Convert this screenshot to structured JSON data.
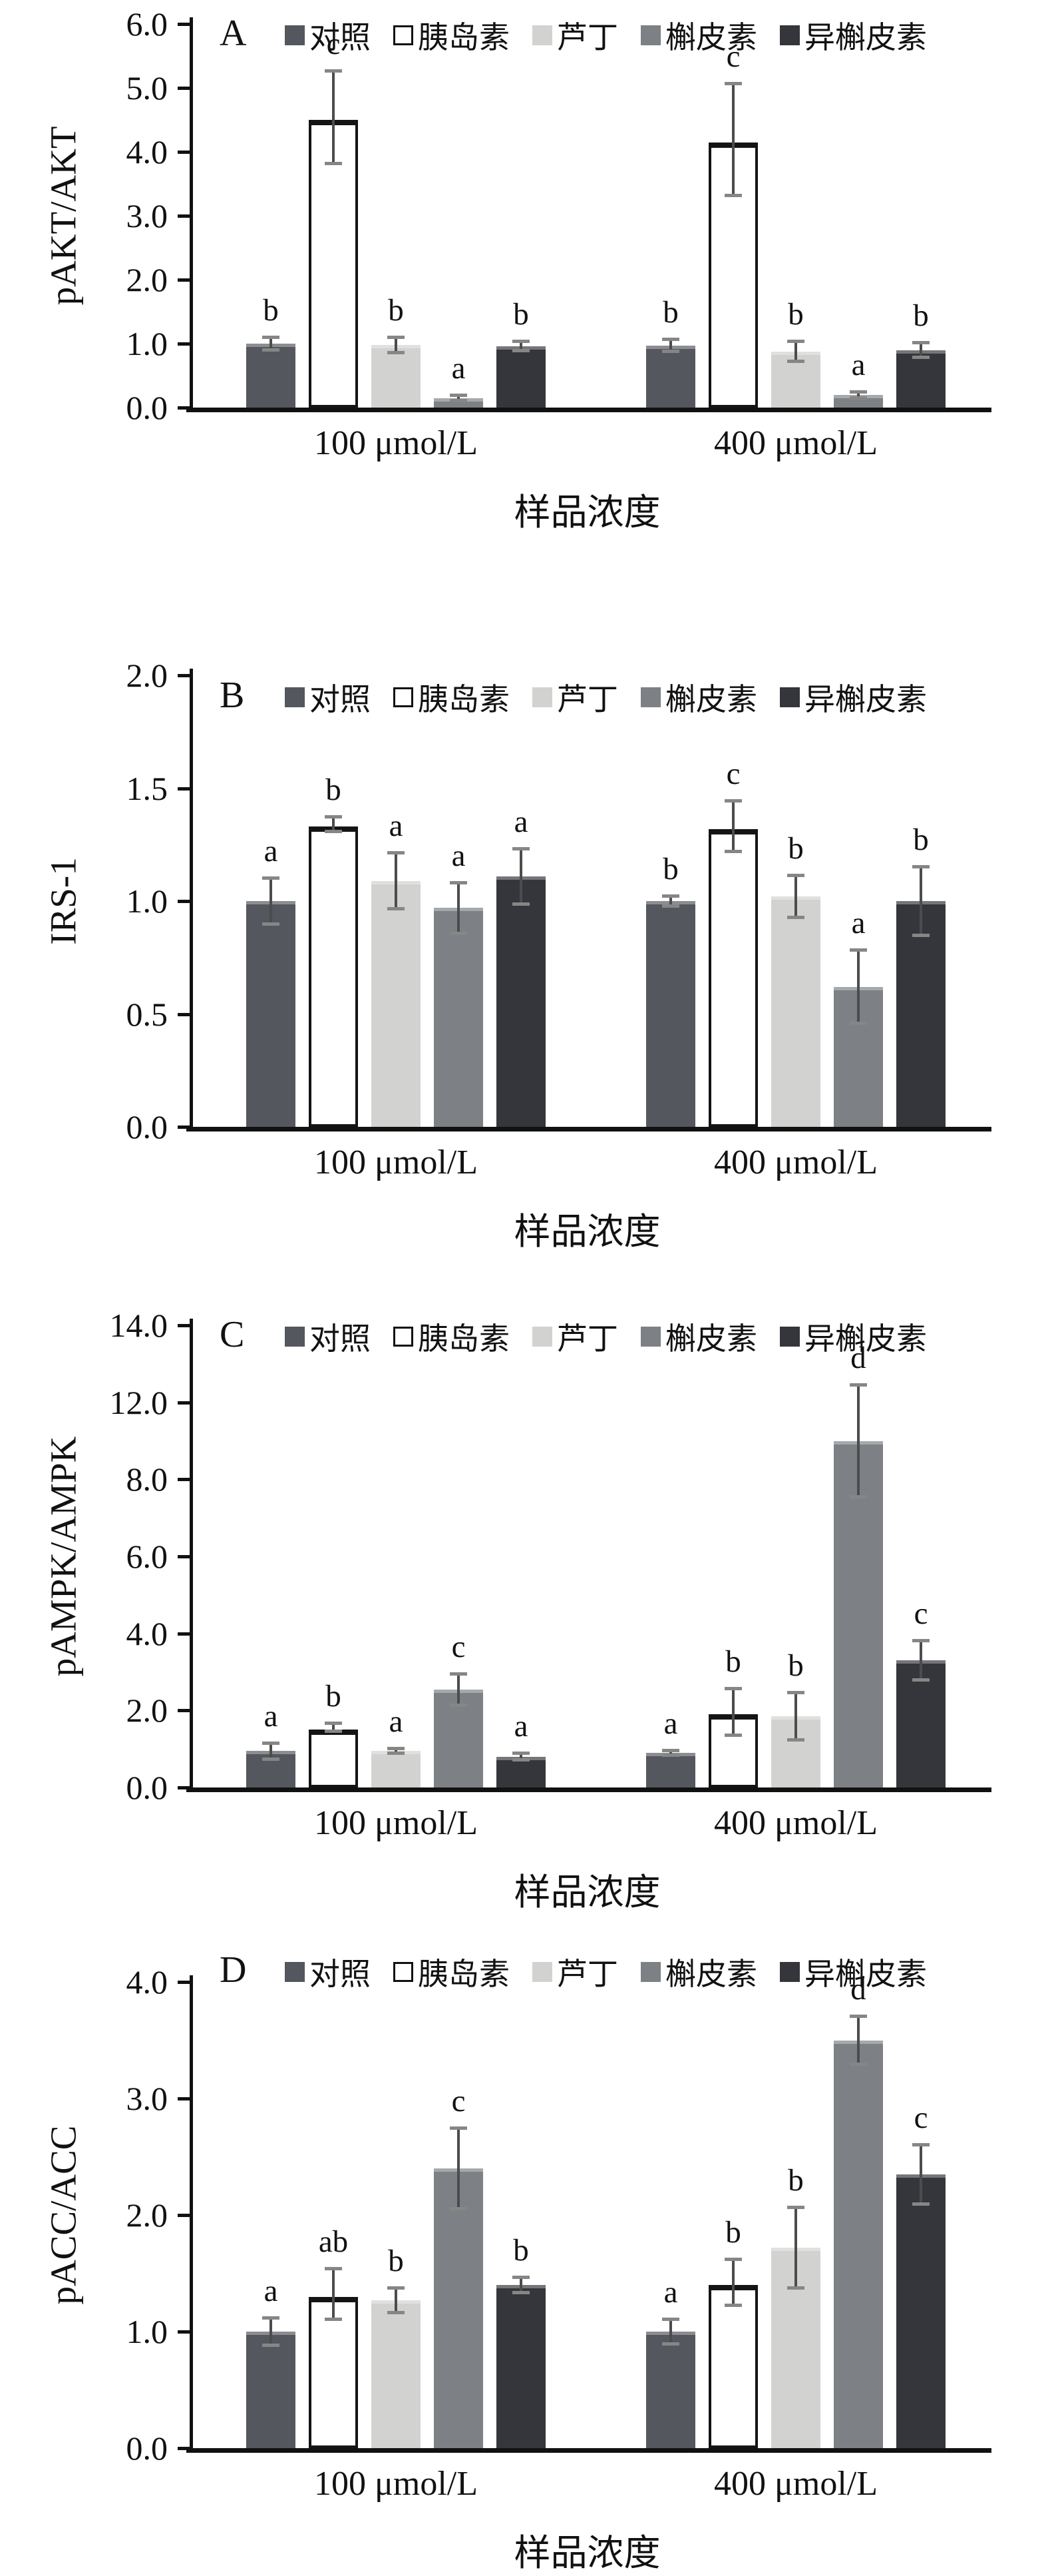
{
  "x_axis_title": "样品浓度",
  "categories": [
    "100 μmol/L",
    "400 μmol/L"
  ],
  "colors": {
    "axis": "#111111",
    "text": "#111111",
    "error_line": "#4c4c4c",
    "error_cap": "#868686",
    "control": "#54575d",
    "insulin": "#ffffff",
    "rutin": "#d2d2d0",
    "quercetin": "#7d8085",
    "isoquercetin": "#34363b"
  },
  "legend": {
    "items": [
      {
        "label": "对照",
        "color": "#54575d",
        "style": "filled"
      },
      {
        "label": "胰岛素",
        "color": "#ffffff",
        "style": "outlined"
      },
      {
        "label": "芦丁",
        "color": "#d2d2d0",
        "style": "filled"
      },
      {
        "label": "槲皮素",
        "color": "#7d8085",
        "style": "filled"
      },
      {
        "label": "异槲皮素",
        "color": "#34363b",
        "style": "filled"
      }
    ]
  },
  "chart_data": [
    {
      "type": "bar",
      "panel_letter": "A",
      "ylabel": "pAKT/AKT",
      "xlabel": "样品浓度",
      "categories": [
        "100 μmol/L",
        "400 μmol/L"
      ],
      "ylim": [
        0,
        6
      ],
      "y_tick_labels": [
        "0.0",
        "1.0",
        "2.0",
        "3.0",
        "4.0",
        "5.0",
        "6.0"
      ],
      "legend_position": "top",
      "grid": false,
      "series": [
        {
          "name": "对照",
          "values": [
            1.0,
            0.97
          ],
          "errors": [
            0.12,
            0.12
          ],
          "sig_letters": [
            "b",
            "b"
          ]
        },
        {
          "name": "胰岛素",
          "values": [
            4.5,
            4.15
          ],
          "errors": [
            0.75,
            0.9
          ],
          "sig_letters": [
            "c",
            "c"
          ]
        },
        {
          "name": "芦丁",
          "values": [
            0.98,
            0.88
          ],
          "errors": [
            0.15,
            0.18
          ],
          "sig_letters": [
            "b",
            "b"
          ]
        },
        {
          "name": "槲皮素",
          "values": [
            0.15,
            0.2
          ],
          "errors": [
            0.07,
            0.07
          ],
          "sig_letters": [
            "a",
            "a"
          ]
        },
        {
          "name": "异槲皮素",
          "values": [
            0.96,
            0.9
          ],
          "errors": [
            0.1,
            0.14
          ],
          "sig_letters": [
            "b",
            "b"
          ]
        }
      ]
    },
    {
      "type": "bar",
      "panel_letter": "B",
      "ylabel": "IRS-1",
      "xlabel": "样品浓度",
      "categories": [
        "100 μmol/L",
        "400 μmol/L"
      ],
      "ylim": [
        0,
        2
      ],
      "y_tick_labels": [
        "0.0",
        "0.5",
        "1.0",
        "1.5",
        "2.0"
      ],
      "legend_position": "top",
      "grid": false,
      "series": [
        {
          "name": "对照",
          "values": [
            1.0,
            1.0
          ],
          "errors": [
            0.11,
            0.03
          ],
          "sig_letters": [
            "a",
            "b"
          ]
        },
        {
          "name": "胰岛素",
          "values": [
            1.33,
            1.32
          ],
          "errors": [
            0.04,
            0.12
          ],
          "sig_letters": [
            "b",
            "c"
          ]
        },
        {
          "name": "芦丁",
          "values": [
            1.09,
            1.02
          ],
          "errors": [
            0.13,
            0.1
          ],
          "sig_letters": [
            "a",
            "b"
          ]
        },
        {
          "name": "槲皮素",
          "values": [
            0.97,
            0.62
          ],
          "errors": [
            0.12,
            0.17
          ],
          "sig_letters": [
            "a",
            "a"
          ]
        },
        {
          "name": "异槲皮素",
          "values": [
            1.11,
            1.0
          ],
          "errors": [
            0.13,
            0.16
          ],
          "sig_letters": [
            "a",
            "b"
          ]
        }
      ]
    },
    {
      "type": "bar",
      "panel_letter": "C",
      "ylabel": "pAMPK/AMPK",
      "xlabel": "样品浓度",
      "categories": [
        "100 μmol/L",
        "400 μmol/L"
      ],
      "ylim": [
        0,
        14
      ],
      "y_tick_labels": [
        "0.0",
        "2.0",
        "4.0",
        "6.0",
        "8.0",
        "12.0",
        "14.0"
      ],
      "legend_position": "top",
      "grid": false,
      "series": [
        {
          "name": "对照",
          "values": [
            0.95,
            0.9
          ],
          "errors": [
            0.25,
            0.1
          ],
          "sig_letters": [
            "a",
            "a"
          ]
        },
        {
          "name": "胰岛素",
          "values": [
            1.5,
            1.9
          ],
          "errors": [
            0.15,
            0.65
          ],
          "sig_letters": [
            "b",
            "b"
          ]
        },
        {
          "name": "芦丁",
          "values": [
            0.95,
            1.85
          ],
          "errors": [
            0.1,
            0.65
          ],
          "sig_letters": [
            "a",
            "b"
          ]
        },
        {
          "name": "槲皮素",
          "values": [
            2.55,
            10.0
          ],
          "errors": [
            0.45,
            2.5
          ],
          "sig_letters": [
            "c",
            "d"
          ]
        },
        {
          "name": "异槲皮素",
          "values": [
            0.8,
            3.3
          ],
          "errors": [
            0.13,
            0.55
          ],
          "sig_letters": [
            "a",
            "c"
          ]
        }
      ]
    },
    {
      "type": "bar",
      "panel_letter": "D",
      "ylabel": "pACC/ACC",
      "xlabel": "样品浓度",
      "categories": [
        "100 μmol/L",
        "400 μmol/L"
      ],
      "ylim": [
        0,
        4
      ],
      "y_tick_labels": [
        "0.0",
        "1.0",
        "2.0",
        "3.0",
        "4.0"
      ],
      "legend_position": "top",
      "grid": false,
      "series": [
        {
          "name": "对照",
          "values": [
            1.0,
            1.0
          ],
          "errors": [
            0.13,
            0.12
          ],
          "sig_letters": [
            "a",
            "a"
          ]
        },
        {
          "name": "胰岛素",
          "values": [
            1.3,
            1.4
          ],
          "errors": [
            0.23,
            0.21
          ],
          "sig_letters": [
            "ab",
            "b"
          ]
        },
        {
          "name": "芦丁",
          "values": [
            1.27,
            1.72
          ],
          "errors": [
            0.12,
            0.36
          ],
          "sig_letters": [
            "b",
            "b"
          ]
        },
        {
          "name": "槲皮素",
          "values": [
            2.4,
            3.5
          ],
          "errors": [
            0.36,
            0.22
          ],
          "sig_letters": [
            "c",
            "d"
          ]
        },
        {
          "name": "异槲皮素",
          "values": [
            1.4,
            2.35
          ],
          "errors": [
            0.08,
            0.27
          ],
          "sig_letters": [
            "b",
            "c"
          ]
        }
      ]
    }
  ]
}
